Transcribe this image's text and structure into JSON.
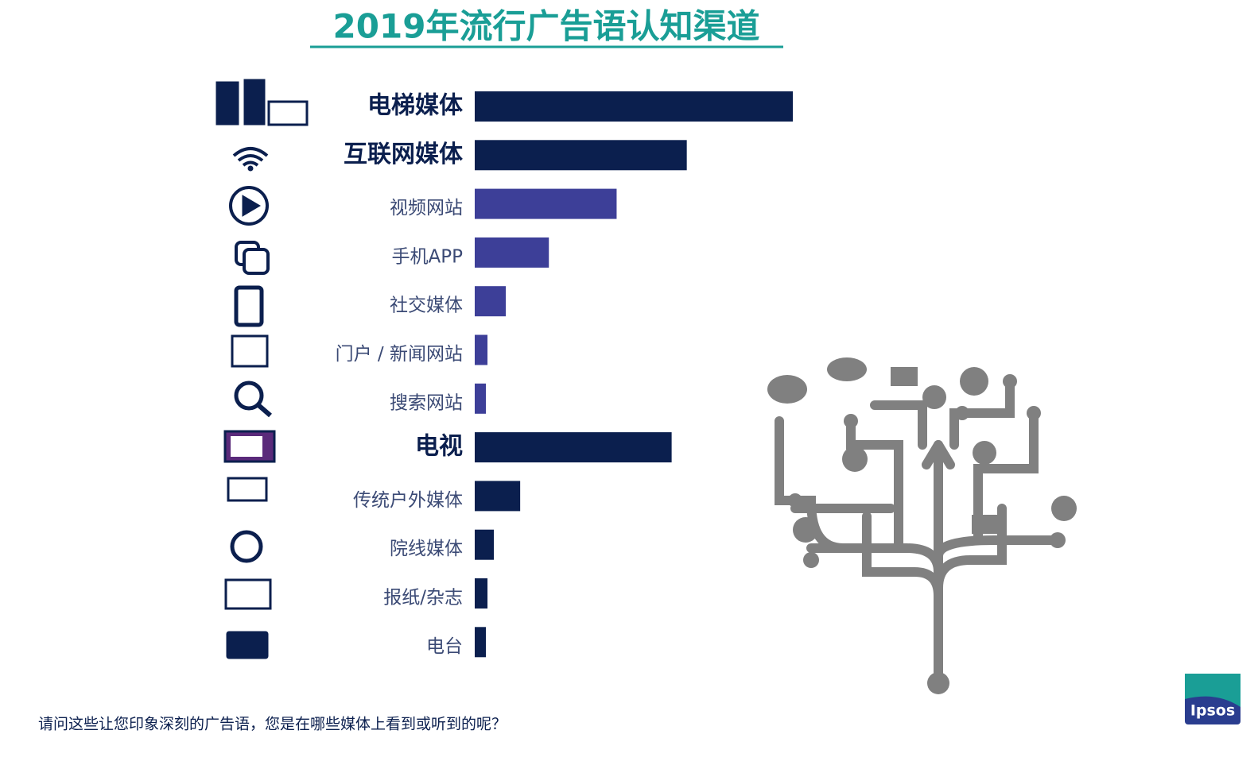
{
  "chart_data": {
    "type": "hbar",
    "title": "2019年流行广告语认知渠道",
    "categories": [
      "电梯媒体",
      "互联网媒体",
      "视频网站",
      "手机APP",
      "社交媒体",
      "门户 / 新闻网站",
      "搜索网站",
      "电视",
      "传统户外媒体",
      "院线媒体",
      "报纸/杂志",
      "电台"
    ],
    "values": [
      399,
      266,
      178,
      93,
      39,
      16,
      14,
      247,
      57,
      24,
      16,
      14
    ],
    "colors": [
      "#0b1f4e",
      "#0b1f4e",
      "#3d3f98",
      "#3d3f98",
      "#3d3f98",
      "#3d3f98",
      "#3d3f98",
      "#0b1f4e",
      "#0b1f4e",
      "#0b1f4e",
      "#0b1f4e",
      "#0b1f4e"
    ],
    "bold": [
      true,
      true,
      false,
      false,
      false,
      false,
      false,
      true,
      false,
      false,
      false,
      false
    ],
    "xlim": [
      0,
      400
    ],
    "footnote": "请问这些让您印象深刻的广告语，您是在哪些媒体上看到或听到的呢？",
    "logo": "Ipsos"
  }
}
